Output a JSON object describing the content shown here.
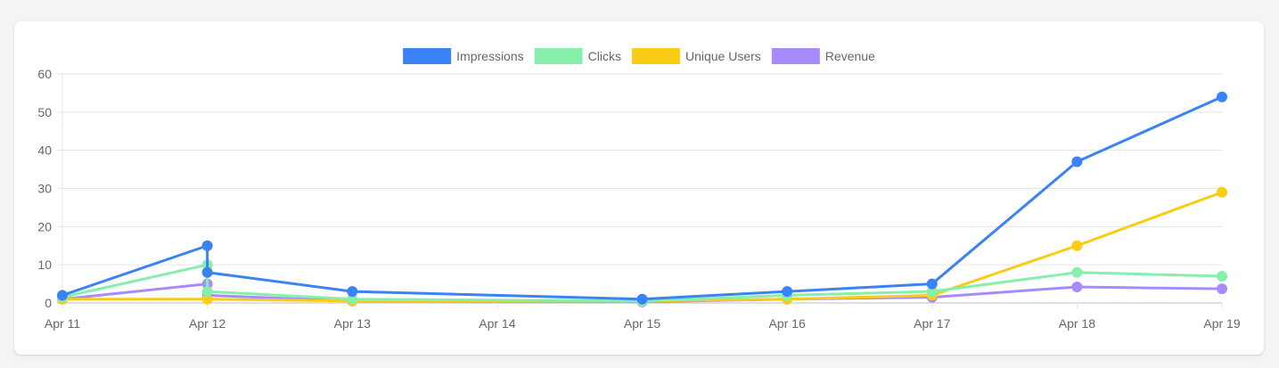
{
  "chart_data": {
    "type": "line",
    "title": "",
    "xlabel": "",
    "ylabel": "",
    "ylim": [
      0,
      60
    ],
    "y_ticks": [
      "0",
      "10",
      "20",
      "30",
      "40",
      "50",
      "60"
    ],
    "x_ticks": [
      "Apr 11",
      "Apr 12",
      "Apr 13",
      "Apr 14",
      "Apr 15",
      "Apr 16",
      "Apr 17",
      "Apr 18",
      "Apr 19"
    ],
    "grid": true,
    "legend_position": "top-center",
    "series": [
      {
        "name": "Impressions",
        "color": "#3b82f6",
        "points": [
          [
            "Apr 11",
            2
          ],
          [
            "Apr 12",
            15
          ],
          [
            "Apr 12",
            8
          ],
          [
            "Apr 13",
            3
          ],
          [
            "Apr 15",
            1
          ],
          [
            "Apr 16",
            3
          ],
          [
            "Apr 17",
            5
          ],
          [
            "Apr 18",
            37
          ],
          [
            "Apr 19",
            54
          ]
        ]
      },
      {
        "name": "Clicks",
        "color": "#86efac",
        "points": [
          [
            "Apr 11",
            1.5
          ],
          [
            "Apr 12",
            10
          ],
          [
            "Apr 12",
            3
          ],
          [
            "Apr 13",
            1
          ],
          [
            "Apr 15",
            0.5
          ],
          [
            "Apr 16",
            2
          ],
          [
            "Apr 17",
            3
          ],
          [
            "Apr 18",
            8
          ],
          [
            "Apr 19",
            7
          ]
        ]
      },
      {
        "name": "Unique Users",
        "color": "#facc15",
        "points": [
          [
            "Apr 11",
            1
          ],
          [
            "Apr 12",
            1
          ],
          [
            "Apr 13",
            0.5
          ],
          [
            "Apr 15",
            0.5
          ],
          [
            "Apr 16",
            1
          ],
          [
            "Apr 17",
            2
          ],
          [
            "Apr 18",
            15
          ],
          [
            "Apr 19",
            29
          ]
        ]
      },
      {
        "name": "Revenue",
        "color": "#a78bfa",
        "points": [
          [
            "Apr 11",
            1
          ],
          [
            "Apr 12",
            5
          ],
          [
            "Apr 12",
            2
          ],
          [
            "Apr 13",
            0.5
          ],
          [
            "Apr 15",
            0.3
          ],
          [
            "Apr 16",
            1
          ],
          [
            "Apr 17",
            1.5
          ],
          [
            "Apr 18",
            4.2
          ],
          [
            "Apr 19",
            3.7
          ]
        ]
      }
    ]
  }
}
